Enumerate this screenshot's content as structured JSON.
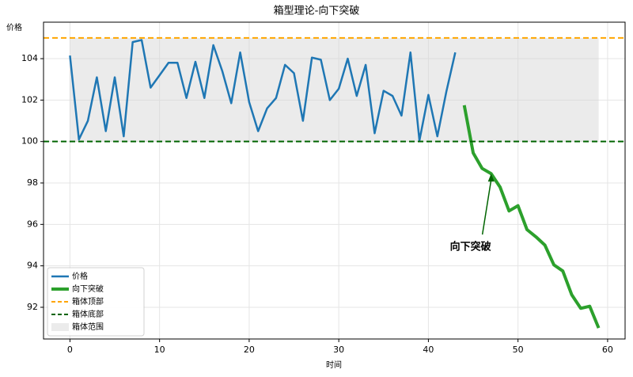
{
  "chart_data": {
    "type": "line",
    "title": "箱型理论-向下突破",
    "x_label": "时间",
    "y_label": "价格",
    "xlim": [
      -2.95,
      61.95
    ],
    "ylim": [
      90.47,
      105.76
    ],
    "xticks": [
      0,
      10,
      20,
      30,
      40,
      50,
      60
    ],
    "yticks": [
      92,
      94,
      96,
      98,
      100,
      102,
      104
    ],
    "grid": true,
    "legend": "lower left",
    "series": [
      {
        "name": "价格",
        "color": "#1f77b4",
        "width": 2.5,
        "x": [
          0,
          1,
          2,
          3,
          4,
          5,
          6,
          7,
          8,
          9,
          10,
          11,
          12,
          13,
          14,
          15,
          16,
          17,
          18,
          19,
          20,
          21,
          22,
          23,
          24,
          25,
          26,
          27,
          28,
          29,
          30,
          31,
          32,
          33,
          34,
          35,
          36,
          37,
          38,
          39,
          40,
          41,
          42,
          43
        ],
        "values": [
          104.15,
          100.1,
          101.0,
          103.1,
          100.5,
          103.1,
          100.25,
          104.8,
          104.9,
          102.6,
          103.2,
          103.8,
          103.8,
          102.1,
          103.85,
          102.1,
          104.65,
          103.4,
          101.85,
          104.3,
          101.9,
          100.5,
          101.6,
          102.1,
          103.7,
          103.3,
          101.0,
          104.05,
          103.95,
          102.0,
          102.55,
          104.0,
          102.2,
          103.7,
          100.4,
          102.45,
          102.2,
          101.25,
          104.3,
          100.05,
          102.25,
          100.25,
          102.4,
          104.3
        ]
      },
      {
        "name": "向下突破",
        "color": "#2ca02c",
        "width": 4,
        "x": [
          44,
          45,
          46,
          47,
          48,
          49,
          50,
          51,
          52,
          53,
          54,
          55,
          56,
          57,
          58,
          59
        ],
        "values": [
          101.75,
          99.45,
          98.7,
          98.45,
          97.8,
          96.65,
          96.9,
          95.75,
          95.4,
          95.0,
          94.05,
          93.75,
          92.6,
          91.95,
          92.05,
          91.0
        ]
      }
    ],
    "hlines": [
      {
        "name": "箱体顶部",
        "value": 105,
        "color": "#ffa500"
      },
      {
        "name": "箱体底部",
        "value": 100,
        "color": "#006400"
      }
    ],
    "span": {
      "name": "箱体范围",
      "x": [
        0,
        59
      ],
      "y": [
        100,
        105
      ],
      "color": "#d3d3d3"
    },
    "annotation": {
      "text": "向下突破",
      "xy": [
        47,
        98.45
      ],
      "xytext": [
        44.7,
        94.9
      ],
      "color": "#006400"
    }
  }
}
